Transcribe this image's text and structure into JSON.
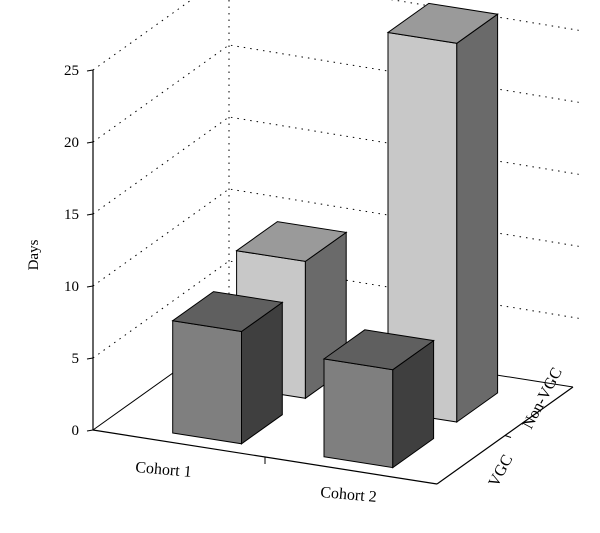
{
  "chart_data": {
    "type": "bar",
    "categories": [
      "Cohort 1",
      "Cohort 2"
    ],
    "series": [
      {
        "name": "VGC",
        "values": [
          7.8,
          6.8
        ]
      },
      {
        "name": "Non-VGC",
        "values": [
          9.5,
          26.3
        ]
      }
    ],
    "xlabel": "",
    "ylabel": "Days",
    "ylim": [
      0,
      25
    ],
    "yticks": [
      "0",
      "5",
      "10",
      "15",
      "20",
      "25"
    ],
    "grid": true,
    "colors": {
      "VGC": {
        "front": "#7f7f7f",
        "side": "#3f3f3f",
        "top": "#5f5f5f"
      },
      "Non-VGC": {
        "front": "#c8c8c8",
        "side": "#6a6a6a",
        "top": "#9a9a9a"
      }
    }
  }
}
